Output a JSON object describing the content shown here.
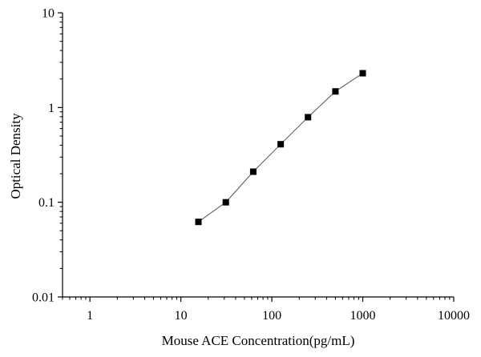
{
  "chart_data": {
    "type": "scatter",
    "title": "",
    "xlabel": "Mouse ACE Concentration(pg/mL)",
    "ylabel": "Optical Density",
    "x_scale": "log",
    "y_scale": "log",
    "xlim": [
      0.5,
      10000
    ],
    "ylim": [
      0.01,
      10
    ],
    "x_ticks": [
      {
        "value": 1,
        "label": "1"
      },
      {
        "value": 10,
        "label": "10"
      },
      {
        "value": 100,
        "label": "100"
      },
      {
        "value": 1000,
        "label": "1000"
      },
      {
        "value": 10000,
        "label": "10000"
      }
    ],
    "y_ticks": [
      {
        "value": 0.01,
        "label": "0.01"
      },
      {
        "value": 0.1,
        "label": "0.1"
      },
      {
        "value": 1,
        "label": "1"
      },
      {
        "value": 10,
        "label": "10"
      }
    ],
    "grid": false,
    "legend": "none",
    "marker": "square",
    "marker_color": "#000000",
    "line_color": "#555555",
    "series": [
      {
        "x": [
          15.6,
          31.2,
          62.5,
          125,
          250,
          500,
          1000
        ],
        "y": [
          0.062,
          0.1,
          0.21,
          0.41,
          0.79,
          1.48,
          2.3
        ]
      }
    ]
  }
}
